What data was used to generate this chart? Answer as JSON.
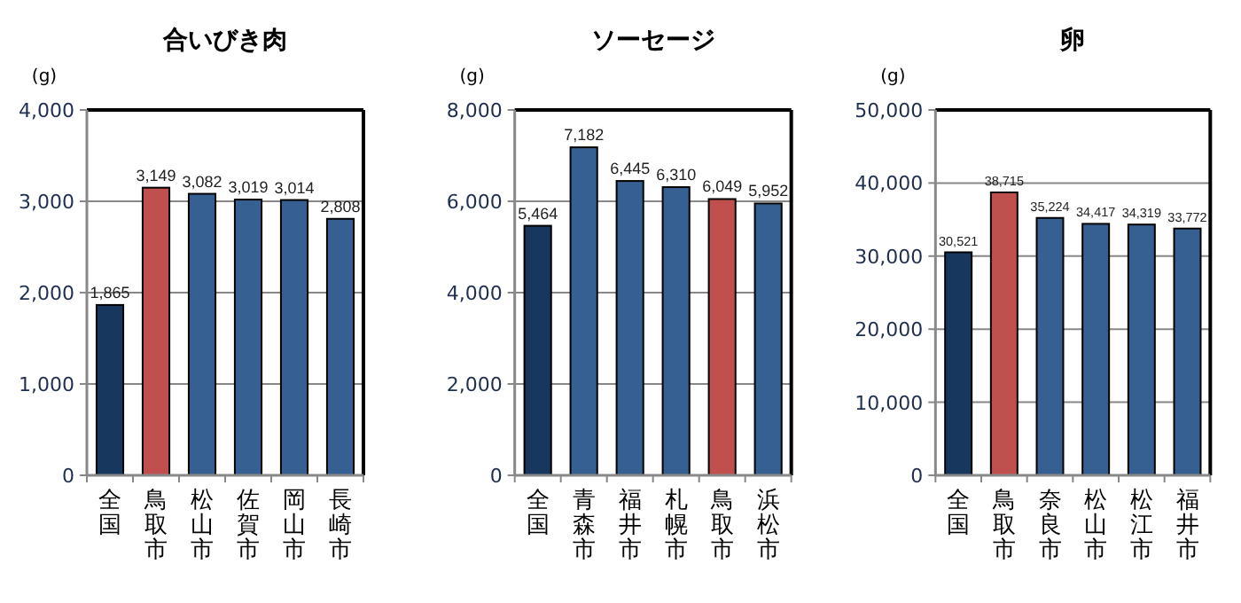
{
  "chart_data": [
    {
      "type": "bar",
      "title": "合いびき肉",
      "ylabel": "(g)",
      "categories": [
        "全国",
        "鳥取市",
        "松山市",
        "佐賀市",
        "岡山市",
        "長崎市"
      ],
      "values": [
        1865,
        3149,
        3082,
        3019,
        3014,
        2808
      ],
      "value_labels": [
        "1,865",
        "3,149",
        "3,082",
        "3,019",
        "3,014",
        "2,808"
      ],
      "colors": [
        "#17375e",
        "#c0504d",
        "#366092",
        "#366092",
        "#366092",
        "#366092"
      ],
      "ylim": [
        0,
        4000
      ],
      "yticks": [
        {
          "value": 0,
          "label": "0"
        },
        {
          "value": 1000,
          "label": "1,000"
        },
        {
          "value": 2000,
          "label": "2,000"
        },
        {
          "value": 3000,
          "label": "3,000"
        },
        {
          "value": 4000,
          "label": "4,000"
        }
      ],
      "grid": "y"
    },
    {
      "type": "bar",
      "title": "ソーセージ",
      "ylabel": "(g)",
      "categories": [
        "全国",
        "青森市",
        "福井市",
        "札幌市",
        "鳥取市",
        "浜松市"
      ],
      "values": [
        5464,
        7182,
        6445,
        6310,
        6049,
        5952
      ],
      "value_labels": [
        "5,464",
        "7,182",
        "6,445",
        "6,310",
        "6,049",
        "5,952"
      ],
      "colors": [
        "#17375e",
        "#366092",
        "#366092",
        "#366092",
        "#c0504d",
        "#366092"
      ],
      "ylim": [
        0,
        8000
      ],
      "yticks": [
        {
          "value": 0,
          "label": "0"
        },
        {
          "value": 2000,
          "label": "2,000"
        },
        {
          "value": 4000,
          "label": "4,000"
        },
        {
          "value": 6000,
          "label": "6,000"
        },
        {
          "value": 8000,
          "label": "8,000"
        }
      ],
      "grid": "y"
    },
    {
      "type": "bar",
      "title": "卵",
      "ylabel": "(g)",
      "categories": [
        "全国",
        "鳥取市",
        "奈良市",
        "松山市",
        "松江市",
        "福井市"
      ],
      "values": [
        30521,
        38715,
        35224,
        34417,
        34319,
        33772
      ],
      "value_labels": [
        "30,521",
        "38,715",
        "35,224",
        "34,417",
        "34,319",
        "33,772"
      ],
      "colors": [
        "#17375e",
        "#c0504d",
        "#366092",
        "#366092",
        "#366092",
        "#366092"
      ],
      "ylim": [
        0,
        50000
      ],
      "yticks": [
        {
          "value": 0,
          "label": "0"
        },
        {
          "value": 10000,
          "label": "10,000"
        },
        {
          "value": 20000,
          "label": "20,000"
        },
        {
          "value": 30000,
          "label": "30,000"
        },
        {
          "value": 40000,
          "label": "40,000"
        },
        {
          "value": 50000,
          "label": "50,000"
        }
      ],
      "grid": "y"
    }
  ]
}
